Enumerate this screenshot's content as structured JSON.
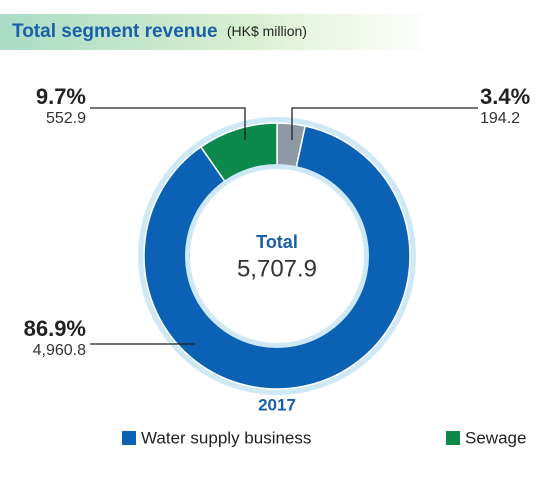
{
  "chart_data": {
    "type": "donut",
    "title": "Total segment revenue",
    "subtitle": "(HK$ million)",
    "center_title": "Total",
    "total": {
      "value": 5707.9,
      "label": "5,707.9"
    },
    "year": "2017",
    "series": [
      {
        "name": null,
        "color": "#8e99a4",
        "percentage": 3.4,
        "percentage_label": "3.4%",
        "value": 194.2,
        "value_label": "194.2"
      },
      {
        "name": "Water supply business",
        "color": "#0b62b5",
        "percentage": 86.9,
        "percentage_label": "86.9%",
        "value": 4960.8,
        "value_label": "4,960.8"
      },
      {
        "name": "Sewage",
        "color": "#0d8a4b",
        "percentage": 9.7,
        "percentage_label": "9.7%",
        "value": 552.9,
        "value_label": "552.9"
      }
    ]
  }
}
